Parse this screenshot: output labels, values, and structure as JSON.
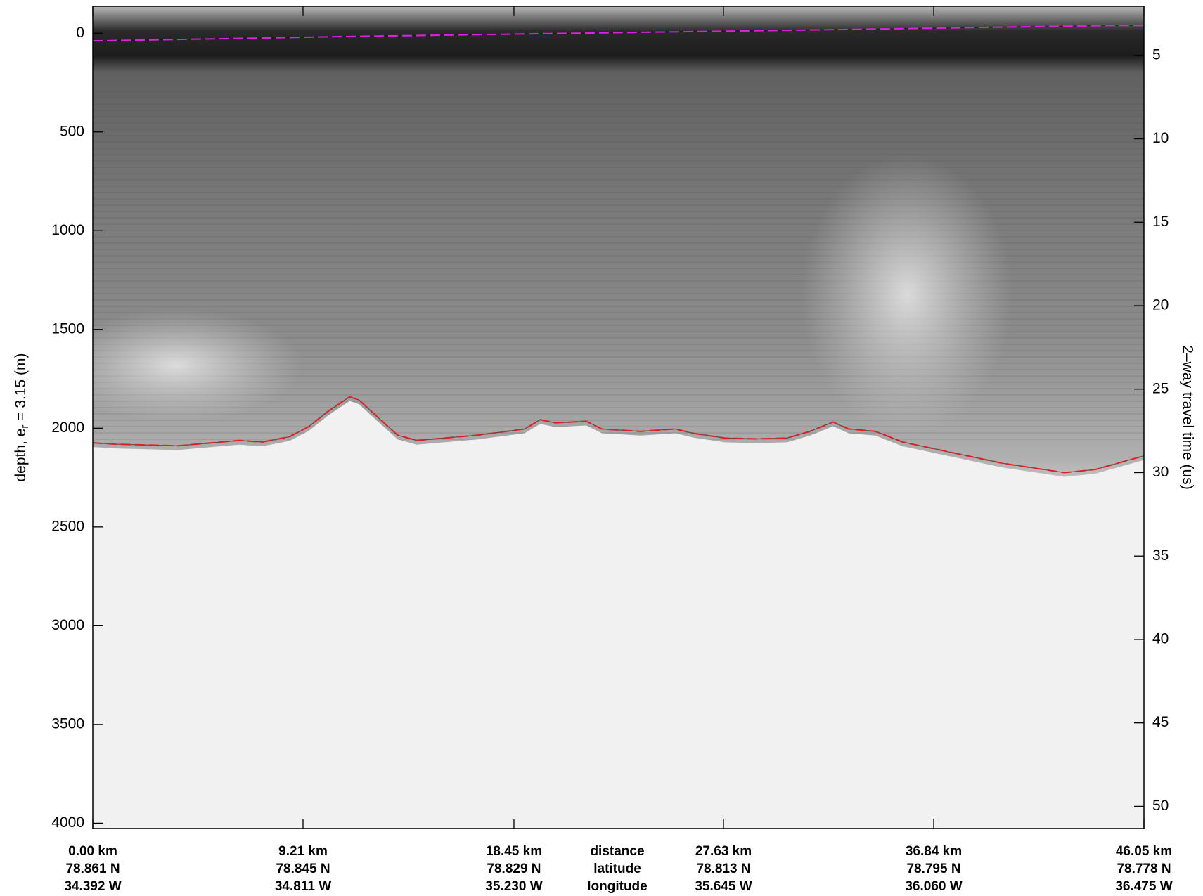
{
  "chart_data": {
    "type": "line",
    "ylabel": "depth, e",
    "ylabel_subscript": "r",
    "ylabel_rest": " = 3.15 (m)",
    "y2label": "2–way travel time (us)",
    "xlim": [
      0,
      46.05
    ],
    "xticks": [
      {
        "value": 0,
        "label": "0.00 km"
      },
      {
        "value": 9.21,
        "label": "9.21 km"
      },
      {
        "value": 18.45,
        "label": "18.45 km"
      },
      {
        "value": 27.63,
        "label": "27.63 km"
      },
      {
        "value": 36.84,
        "label": "36.84 km"
      },
      {
        "value": 46.05,
        "label": "46.05 km"
      }
    ],
    "latitude_labels": [
      "78.861 N",
      "78.845 N",
      "78.829 N",
      "78.813 N",
      "78.795 N",
      "78.778 N"
    ],
    "longitude_labels": [
      "34.392 W",
      "34.811 W",
      "35.230 W",
      "35.645 W",
      "36.060 W",
      "36.475 W"
    ],
    "row_labels": [
      "distance",
      "latitude",
      "longitude"
    ],
    "ylim": [
      4027,
      -136
    ],
    "yticks": [
      0,
      500,
      1000,
      1500,
      2000,
      2500,
      3000,
      3500,
      4000
    ],
    "y2lim": [
      51.33,
      2.06
    ],
    "y2ticks": [
      5,
      10,
      15,
      20,
      25,
      30,
      35,
      40,
      45,
      50
    ],
    "series": [
      {
        "name": "surface",
        "color": "#e020e0",
        "x": [
          0,
          6.08,
          11.49,
          23.65,
          33.11,
          44.6,
          46.05
        ],
        "values": [
          39,
          27,
          16,
          -4,
          -19,
          -39,
          -39
        ]
      },
      {
        "name": "bed",
        "color": "#e02020",
        "x": [
          0,
          1.01,
          3.72,
          6.42,
          7.43,
          8.62,
          9.46,
          10.3,
          11.25,
          11.66,
          12.5,
          13.35,
          14.19,
          16.89,
          18.92,
          19.6,
          20.27,
          21.62,
          22.3,
          23.99,
          25.51,
          26.35,
          27.7,
          29.06,
          30.41,
          31.42,
          32.43,
          33.11,
          34.29,
          35.48,
          37.5,
          39.87,
          42.57,
          43.92,
          46.05
        ],
        "values": [
          2074,
          2081,
          2089,
          2062,
          2070,
          2043,
          1992,
          1915,
          1841,
          1857,
          1946,
          2035,
          2062,
          2035,
          2004,
          1957,
          1973,
          1965,
          2004,
          2016,
          2004,
          2027,
          2050,
          2054,
          2050,
          2016,
          1969,
          2004,
          2016,
          2070,
          2120,
          2178,
          2225,
          2209,
          2140
        ]
      }
    ]
  }
}
